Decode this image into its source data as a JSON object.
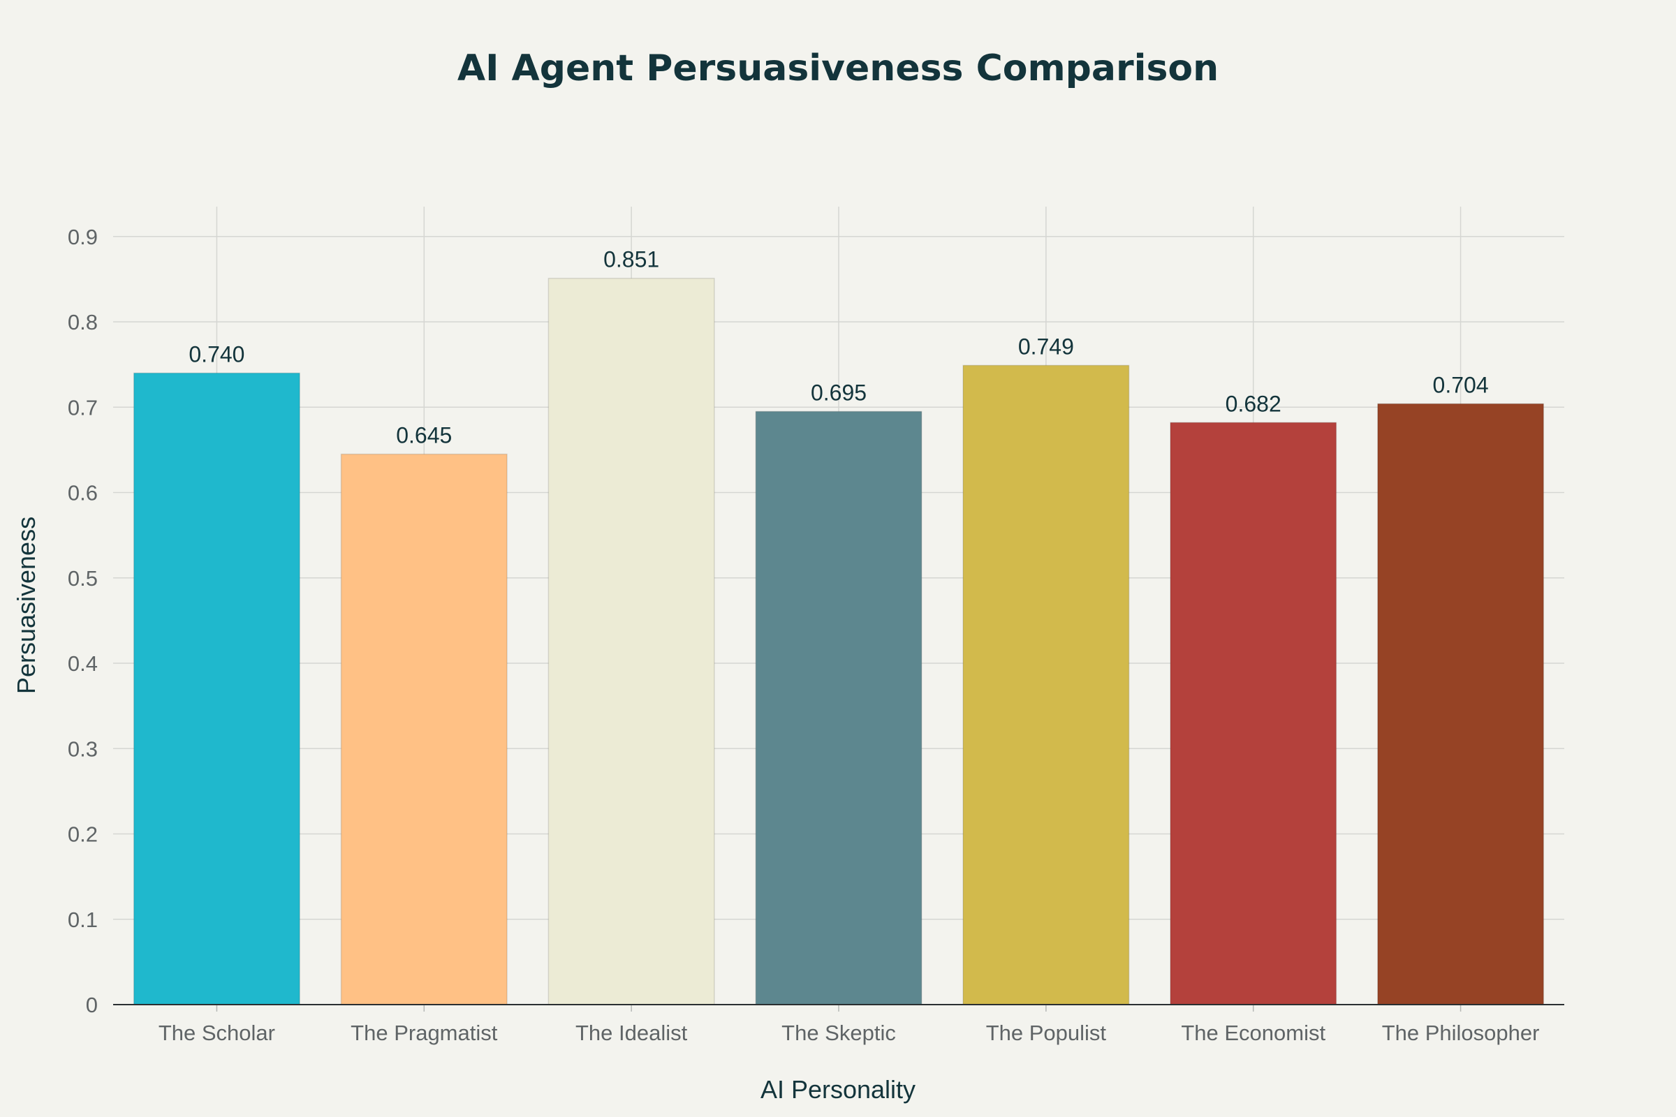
{
  "chart_data": {
    "type": "bar",
    "title": "AI Agent Persuasiveness Comparison",
    "xlabel": "AI Personality",
    "ylabel": "Persuasiveness",
    "ylim": [
      0,
      0.935
    ],
    "yticks": [
      0,
      0.1,
      0.2,
      0.3,
      0.4,
      0.5,
      0.6,
      0.7,
      0.8,
      0.9
    ],
    "ytick_labels": [
      "0",
      "0.1",
      "0.2",
      "0.3",
      "0.4",
      "0.5",
      "0.6",
      "0.7",
      "0.8",
      "0.9"
    ],
    "grid": true,
    "categories": [
      "The Scholar",
      "The Pragmatist",
      "The Idealist",
      "The Skeptic",
      "The Populist",
      "The Economist",
      "The Philosopher"
    ],
    "values": [
      0.74,
      0.645,
      0.851,
      0.695,
      0.749,
      0.682,
      0.704
    ],
    "value_labels": [
      "0.740",
      "0.645",
      "0.851",
      "0.695",
      "0.749",
      "0.682",
      "0.704"
    ],
    "colors": [
      "#1fb8cd",
      "#ffc185",
      "#eceBd5",
      "#5d878f",
      "#d2ba4c",
      "#b4413c",
      "#964325"
    ]
  }
}
